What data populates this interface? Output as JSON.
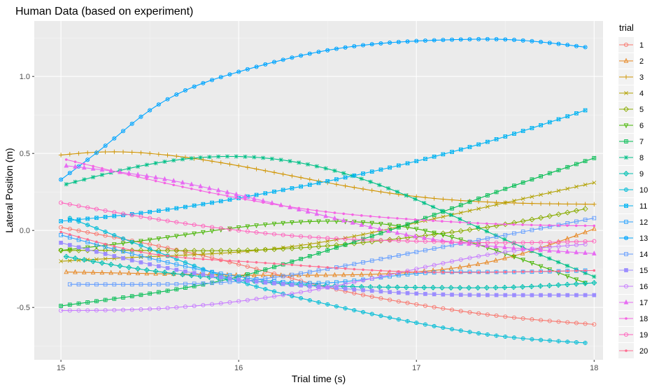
{
  "chart_data": {
    "type": "line",
    "title": "Human Data (based on experiment)",
    "xlabel": "Trial time (s)",
    "ylabel": "Lateral Position (m)",
    "xlim": [
      14.85,
      18.05
    ],
    "ylim": [
      -0.84,
      1.36
    ],
    "x_ticks": [
      15,
      16,
      17,
      18
    ],
    "y_ticks": [
      -0.5,
      0.0,
      0.5,
      1.0
    ],
    "x_tick_labels": [
      "15",
      "16",
      "17",
      "18"
    ],
    "y_tick_labels": [
      "-0.5",
      "0.0",
      "0.5",
      "1.0"
    ],
    "grid": true,
    "legend": {
      "title": "trial",
      "position": "right"
    },
    "series": [
      {
        "name": "1",
        "color": "#F8766D",
        "marker": "circle",
        "x": [
          15.0,
          15.5,
          16.0,
          16.5,
          17.0,
          17.5,
          18.0
        ],
        "y": [
          0.02,
          -0.09,
          -0.22,
          -0.37,
          -0.48,
          -0.56,
          -0.61
        ]
      },
      {
        "name": "2",
        "color": "#E7851E",
        "marker": "triangle",
        "x": [
          15.03,
          15.5,
          16.0,
          16.5,
          17.0,
          17.5,
          18.0
        ],
        "y": [
          -0.27,
          -0.28,
          -0.29,
          -0.29,
          -0.27,
          -0.18,
          0.01
        ]
      },
      {
        "name": "3",
        "color": "#D09400",
        "marker": "plus",
        "x": [
          15.0,
          15.25,
          15.5,
          16.0,
          16.5,
          17.0,
          17.5,
          18.0
        ],
        "y": [
          0.49,
          0.51,
          0.5,
          0.42,
          0.31,
          0.22,
          0.18,
          0.17
        ]
      },
      {
        "name": "4",
        "color": "#B2A100",
        "marker": "x",
        "x": [
          15.0,
          15.5,
          16.0,
          16.5,
          17.0,
          17.5,
          18.0
        ],
        "y": [
          -0.2,
          -0.17,
          -0.14,
          -0.07,
          0.05,
          0.18,
          0.31
        ]
      },
      {
        "name": "5",
        "color": "#89AC00",
        "marker": "diamond",
        "x": [
          15.0,
          15.5,
          16.0,
          16.5,
          17.0,
          17.5,
          17.95
        ],
        "y": [
          -0.13,
          -0.13,
          -0.13,
          -0.1,
          -0.04,
          0.04,
          0.14
        ]
      },
      {
        "name": "6",
        "color": "#45B500",
        "marker": "triangle-down",
        "x": [
          15.0,
          15.5,
          16.0,
          16.5,
          17.0,
          17.5,
          17.95
        ],
        "y": [
          -0.13,
          -0.06,
          0.02,
          0.06,
          0.01,
          -0.15,
          -0.34
        ]
      },
      {
        "name": "7",
        "color": "#00BC51",
        "marker": "square-cross",
        "x": [
          15.0,
          15.5,
          16.0,
          16.5,
          17.0,
          17.5,
          18.0
        ],
        "y": [
          -0.49,
          -0.41,
          -0.3,
          -0.13,
          0.06,
          0.27,
          0.47
        ]
      },
      {
        "name": "8",
        "color": "#00C087",
        "marker": "asterisk",
        "x": [
          15.03,
          15.5,
          16.0,
          16.5,
          17.0,
          17.5,
          18.0
        ],
        "y": [
          0.3,
          0.43,
          0.48,
          0.4,
          0.2,
          -0.06,
          -0.3
        ]
      },
      {
        "name": "9",
        "color": "#00C0B2",
        "marker": "diamond-plus",
        "x": [
          15.03,
          15.5,
          16.0,
          16.5,
          17.0,
          17.5,
          18.0
        ],
        "y": [
          -0.17,
          -0.26,
          -0.32,
          -0.36,
          -0.37,
          -0.37,
          -0.34
        ]
      },
      {
        "name": "10",
        "color": "#00BCD6",
        "marker": "circle-plus",
        "x": [
          15.05,
          15.5,
          16.0,
          16.5,
          17.0,
          17.5,
          17.95
        ],
        "y": [
          0.08,
          -0.12,
          -0.33,
          -0.48,
          -0.6,
          -0.69,
          -0.73
        ]
      },
      {
        "name": "11",
        "color": "#00B3F2",
        "marker": "square-x",
        "x": [
          15.0,
          15.5,
          16.0,
          16.5,
          17.0,
          17.5,
          17.95
        ],
        "y": [
          0.06,
          0.12,
          0.21,
          0.32,
          0.45,
          0.61,
          0.78
        ]
      },
      {
        "name": "12",
        "color": "#29A3FF",
        "marker": "square-open",
        "x": [
          15.0,
          15.5,
          16.0,
          16.5,
          17.0,
          17.5,
          17.95
        ],
        "y": [
          -0.03,
          -0.18,
          -0.3,
          -0.34,
          -0.28,
          -0.27,
          -0.26
        ]
      },
      {
        "name": "13",
        "color": "#00A5FF",
        "marker": "circle-x",
        "x": [
          15.0,
          15.25,
          15.5,
          16.0,
          16.5,
          17.0,
          17.25,
          17.5,
          17.95
        ],
        "y": [
          0.33,
          0.55,
          0.78,
          1.03,
          1.17,
          1.23,
          1.24,
          1.24,
          1.19
        ]
      },
      {
        "name": "14",
        "color": "#619CFF",
        "marker": "square-open",
        "x": [
          15.05,
          15.5,
          16.0,
          16.5,
          17.0,
          17.5,
          18.0
        ],
        "y": [
          -0.35,
          -0.35,
          -0.33,
          -0.25,
          -0.14,
          -0.03,
          0.08
        ]
      },
      {
        "name": "15",
        "color": "#9C8DFF",
        "marker": "square",
        "x": [
          15.0,
          15.5,
          16.0,
          16.5,
          17.0,
          17.5,
          18.0
        ],
        "y": [
          -0.08,
          -0.22,
          -0.32,
          -0.37,
          -0.41,
          -0.42,
          -0.42
        ]
      },
      {
        "name": "16",
        "color": "#C77CFF",
        "marker": "circle",
        "x": [
          15.0,
          15.5,
          16.0,
          16.5,
          17.0,
          17.5,
          17.95
        ],
        "y": [
          -0.52,
          -0.51,
          -0.46,
          -0.37,
          -0.25,
          -0.14,
          -0.09
        ]
      },
      {
        "name": "17",
        "color": "#E76BF3",
        "marker": "triangle",
        "x": [
          15.03,
          15.5,
          16.0,
          16.5,
          17.0,
          17.5,
          18.0
        ],
        "y": [
          0.42,
          0.35,
          0.23,
          0.09,
          -0.04,
          -0.11,
          -0.15
        ]
      },
      {
        "name": "18",
        "color": "#F564E3",
        "marker": "dot",
        "x": [
          15.03,
          15.5,
          16.0,
          16.5,
          17.0,
          17.5,
          18.0
        ],
        "y": [
          0.46,
          0.33,
          0.21,
          0.12,
          0.07,
          0.04,
          0.03
        ]
      },
      {
        "name": "19",
        "color": "#FF62BC",
        "marker": "circle",
        "x": [
          15.0,
          15.5,
          16.0,
          16.5,
          17.0,
          17.5,
          18.0
        ],
        "y": [
          0.18,
          0.08,
          0.0,
          -0.05,
          -0.07,
          -0.08,
          -0.07
        ]
      },
      {
        "name": "20",
        "color": "#FF6C90",
        "marker": "dot",
        "x": [
          15.0,
          15.5,
          16.0,
          16.5,
          17.0,
          17.5,
          18.0
        ],
        "y": [
          -0.01,
          -0.15,
          -0.2,
          -0.24,
          -0.27,
          -0.27,
          -0.26
        ]
      }
    ]
  }
}
